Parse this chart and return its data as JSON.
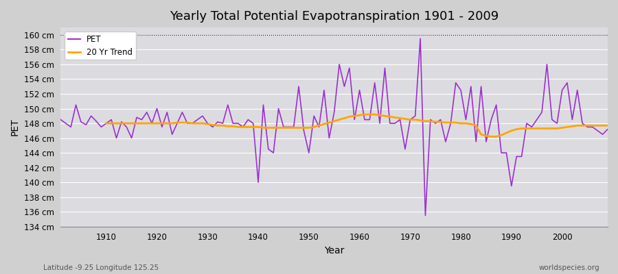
{
  "title": "Yearly Total Potential Evapotranspiration 1901 - 2009",
  "xlabel": "Year",
  "ylabel": "PET",
  "subtitle_left": "Latitude -9.25 Longitude 125.25",
  "subtitle_right": "worldspecies.org",
  "ylim": [
    134,
    161
  ],
  "yticks": [
    134,
    136,
    138,
    140,
    142,
    144,
    146,
    148,
    150,
    152,
    154,
    156,
    158,
    160
  ],
  "ytick_labels": [
    "134 cm",
    "136 cm",
    "138 cm",
    "140 cm",
    "142 cm",
    "144 cm",
    "146 cm",
    "148 cm",
    "150 cm",
    "152 cm",
    "154 cm",
    "156 cm",
    "158 cm",
    "160 cm"
  ],
  "xlim": [
    1901,
    2009
  ],
  "xticks": [
    1910,
    1920,
    1930,
    1940,
    1950,
    1960,
    1970,
    1980,
    1990,
    2000
  ],
  "pet_color": "#9B30D0",
  "trend_color": "#FFA500",
  "years": [
    1901,
    1902,
    1903,
    1904,
    1905,
    1906,
    1907,
    1908,
    1909,
    1910,
    1911,
    1912,
    1913,
    1914,
    1915,
    1916,
    1917,
    1918,
    1919,
    1920,
    1921,
    1922,
    1923,
    1924,
    1925,
    1926,
    1927,
    1928,
    1929,
    1930,
    1931,
    1932,
    1933,
    1934,
    1935,
    1936,
    1937,
    1938,
    1939,
    1940,
    1941,
    1942,
    1943,
    1944,
    1945,
    1946,
    1947,
    1948,
    1949,
    1950,
    1951,
    1952,
    1953,
    1954,
    1955,
    1956,
    1957,
    1958,
    1959,
    1960,
    1961,
    1962,
    1963,
    1964,
    1965,
    1966,
    1967,
    1968,
    1969,
    1970,
    1971,
    1972,
    1973,
    1974,
    1975,
    1976,
    1977,
    1978,
    1979,
    1980,
    1981,
    1982,
    1983,
    1984,
    1985,
    1986,
    1987,
    1988,
    1989,
    1990,
    1991,
    1992,
    1993,
    1994,
    1995,
    1996,
    1997,
    1998,
    1999,
    2000,
    2001,
    2002,
    2003,
    2004,
    2005,
    2006,
    2007,
    2008,
    2009
  ],
  "pet_values": [
    148.5,
    148.0,
    147.5,
    150.5,
    148.2,
    147.8,
    149.0,
    148.3,
    147.5,
    148.0,
    148.5,
    146.0,
    148.2,
    147.5,
    146.0,
    148.8,
    148.5,
    149.5,
    148.0,
    150.0,
    147.5,
    149.5,
    146.5,
    148.0,
    149.5,
    148.0,
    148.0,
    148.5,
    149.0,
    148.0,
    147.5,
    148.2,
    148.0,
    150.5,
    148.0,
    148.0,
    147.5,
    148.5,
    148.0,
    140.0,
    150.5,
    144.5,
    144.0,
    150.0,
    147.5,
    147.5,
    147.5,
    153.0,
    147.0,
    144.0,
    149.0,
    147.5,
    152.5,
    146.0,
    149.5,
    156.0,
    153.0,
    155.5,
    148.5,
    152.5,
    148.5,
    148.5,
    153.5,
    148.0,
    155.5,
    148.0,
    148.0,
    148.5,
    144.5,
    148.5,
    149.0,
    159.5,
    135.5,
    148.5,
    148.0,
    148.5,
    145.5,
    148.0,
    153.5,
    152.5,
    148.5,
    153.0,
    145.5,
    153.0,
    145.5,
    148.5,
    150.5,
    144.0,
    144.0,
    139.5,
    143.5,
    143.5,
    148.0,
    147.5,
    148.5,
    149.5,
    156.0,
    148.5,
    148.0,
    152.5,
    153.5,
    148.5,
    152.5,
    148.0,
    147.5,
    147.5,
    147.0,
    146.5,
    147.2
  ],
  "trend_years": [
    1910,
    1911,
    1912,
    1913,
    1914,
    1915,
    1916,
    1917,
    1918,
    1919,
    1920,
    1921,
    1922,
    1923,
    1924,
    1925,
    1926,
    1927,
    1928,
    1929,
    1930,
    1931,
    1932,
    1933,
    1934,
    1935,
    1936,
    1937,
    1938,
    1939,
    1940,
    1941,
    1942,
    1943,
    1944,
    1945,
    1946,
    1947,
    1948,
    1949,
    1950,
    1951,
    1952,
    1953,
    1954,
    1955,
    1956,
    1957,
    1958,
    1959,
    1960,
    1961,
    1962,
    1963,
    1964,
    1965,
    1966,
    1967,
    1968,
    1969,
    1970,
    1971,
    1972,
    1973,
    1974,
    1975,
    1976,
    1977,
    1978,
    1979,
    1980,
    1981,
    1982,
    1983,
    1984,
    1985,
    1986,
    1987,
    1988,
    1989,
    1990,
    1991,
    1992,
    1993,
    1994,
    1995,
    1996,
    1997,
    1998,
    1999,
    2000,
    2001,
    2002,
    2003,
    2004,
    2005,
    2006,
    2007,
    2008,
    2009
  ],
  "trend_values": [
    148.0,
    148.0,
    148.0,
    148.0,
    148.0,
    148.0,
    148.0,
    148.0,
    148.0,
    148.0,
    148.0,
    148.0,
    148.0,
    148.0,
    148.1,
    148.1,
    148.1,
    148.0,
    148.0,
    148.0,
    147.9,
    147.8,
    147.7,
    147.7,
    147.6,
    147.6,
    147.5,
    147.5,
    147.5,
    147.5,
    147.5,
    147.4,
    147.4,
    147.4,
    147.4,
    147.4,
    147.4,
    147.4,
    147.4,
    147.4,
    147.4,
    147.5,
    147.7,
    147.9,
    148.1,
    148.3,
    148.5,
    148.7,
    148.9,
    149.0,
    149.1,
    149.2,
    149.2,
    149.2,
    149.1,
    149.0,
    148.9,
    148.8,
    148.7,
    148.6,
    148.5,
    148.5,
    148.4,
    148.3,
    148.3,
    148.2,
    148.2,
    148.1,
    148.1,
    148.1,
    148.0,
    148.0,
    147.9,
    147.7,
    146.5,
    146.3,
    146.2,
    146.2,
    146.4,
    146.7,
    147.0,
    147.2,
    147.3,
    147.3,
    147.3,
    147.3,
    147.3,
    147.3,
    147.3,
    147.3,
    147.4,
    147.5,
    147.6,
    147.7,
    147.7,
    147.7,
    147.7,
    147.7,
    147.7,
    147.7
  ]
}
